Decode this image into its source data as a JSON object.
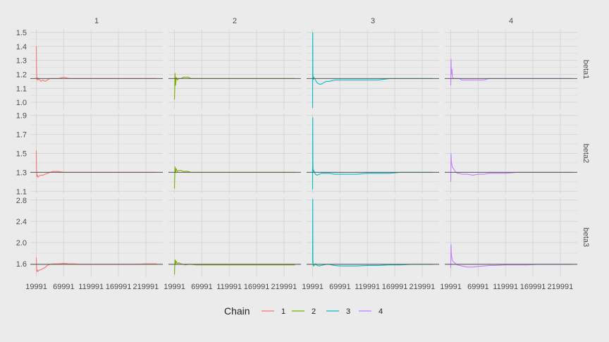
{
  "chart_data": {
    "type": "line",
    "title": "",
    "xlabel": "",
    "ylabel": "",
    "background": "#ebebeb",
    "gridline_color": "#d6d6d6",
    "reference_line_color": "#555555",
    "grid": true,
    "facet_columns": [
      "1",
      "2",
      "3",
      "4"
    ],
    "facet_rows": [
      "beta1",
      "beta2",
      "beta3"
    ],
    "x_ticks": [
      "19991",
      "69991",
      "119991",
      "169991",
      "219991"
    ],
    "xlim": [
      19991,
      239991
    ],
    "rows": [
      {
        "name": "beta1",
        "ylim": [
          0.95,
          1.52
        ],
        "y_ticks": [
          "1.0",
          "1.1",
          "1.2",
          "1.3",
          "1.4",
          "1.5"
        ],
        "reference": 1.17
      },
      {
        "name": "beta2",
        "ylim": [
          1.08,
          1.92
        ],
        "y_ticks": [
          "1.1",
          "1.3",
          "1.5",
          "1.7",
          "1.9"
        ],
        "reference": 1.3
      },
      {
        "name": "beta3",
        "ylim": [
          1.35,
          2.85
        ],
        "y_ticks": [
          "1.6",
          "2.0",
          "2.4",
          "2.8"
        ],
        "reference": 1.59
      }
    ],
    "legend": {
      "title": "Chain",
      "position": "bottom",
      "items": [
        {
          "label": "1",
          "color": "#f8766d"
        },
        {
          "label": "2",
          "color": "#7cae00"
        },
        {
          "label": "3",
          "color": "#00bfc4"
        },
        {
          "label": "4",
          "color": "#c77cff"
        }
      ]
    },
    "series": [
      {
        "row": "beta1",
        "chain": "1",
        "color": "#f8766d",
        "x": [
          19991,
          20500,
          21000,
          21500,
          23000,
          25000,
          28000,
          32000,
          36000,
          40000,
          45000,
          50000,
          60000,
          70000,
          80000,
          90000,
          100000,
          120000,
          140000,
          160000,
          180000,
          200000,
          220000,
          239991
        ],
        "y": [
          1.4,
          1.22,
          1.16,
          1.18,
          1.16,
          1.17,
          1.15,
          1.16,
          1.15,
          1.16,
          1.17,
          1.17,
          1.17,
          1.18,
          1.17,
          1.17,
          1.17,
          1.17,
          1.17,
          1.17,
          1.17,
          1.17,
          1.17,
          1.17
        ]
      },
      {
        "row": "beta1",
        "chain": "2",
        "color": "#7cae00",
        "x": [
          19991,
          20500,
          21000,
          22000,
          23000,
          25000,
          28000,
          32000,
          36000,
          40000,
          45000,
          50000,
          60000,
          70000,
          80000,
          90000,
          100000,
          120000,
          140000,
          160000,
          180000,
          200000,
          220000,
          239991
        ],
        "y": [
          1.02,
          1.1,
          1.21,
          1.12,
          1.18,
          1.16,
          1.17,
          1.17,
          1.18,
          1.18,
          1.18,
          1.17,
          1.17,
          1.17,
          1.17,
          1.17,
          1.17,
          1.17,
          1.17,
          1.17,
          1.17,
          1.17,
          1.17,
          1.17
        ]
      },
      {
        "row": "beta1",
        "chain": "3",
        "color": "#00bfc4",
        "x": [
          19991,
          20200,
          20500,
          21000,
          22000,
          25000,
          28000,
          32000,
          36000,
          40000,
          45000,
          50000,
          60000,
          70000,
          80000,
          90000,
          100000,
          120000,
          140000,
          160000,
          180000,
          200000,
          220000,
          239991
        ],
        "y": [
          0.96,
          1.5,
          1.2,
          1.16,
          1.18,
          1.16,
          1.14,
          1.13,
          1.13,
          1.14,
          1.15,
          1.15,
          1.16,
          1.16,
          1.16,
          1.16,
          1.16,
          1.16,
          1.16,
          1.17,
          1.17,
          1.17,
          1.17,
          1.17
        ]
      },
      {
        "row": "beta1",
        "chain": "4",
        "color": "#c77cff",
        "x": [
          19991,
          20500,
          21000,
          22000,
          23000,
          25000,
          28000,
          32000,
          36000,
          40000,
          45000,
          50000,
          60000,
          70000,
          80000,
          90000,
          100000,
          120000,
          140000,
          160000,
          180000,
          200000,
          220000,
          239991
        ],
        "y": [
          1.12,
          1.31,
          1.2,
          1.24,
          1.18,
          1.17,
          1.17,
          1.17,
          1.17,
          1.16,
          1.16,
          1.16,
          1.16,
          1.16,
          1.16,
          1.17,
          1.17,
          1.17,
          1.17,
          1.17,
          1.17,
          1.17,
          1.17,
          1.17
        ]
      },
      {
        "row": "beta2",
        "chain": "1",
        "color": "#f8766d",
        "x": [
          19991,
          20500,
          21000,
          22000,
          23000,
          25000,
          28000,
          32000,
          36000,
          40000,
          45000,
          50000,
          60000,
          70000,
          80000,
          90000,
          100000,
          120000,
          140000,
          160000,
          180000,
          200000,
          220000,
          239991
        ],
        "y": [
          1.53,
          1.31,
          1.26,
          1.27,
          1.25,
          1.26,
          1.27,
          1.27,
          1.28,
          1.29,
          1.3,
          1.31,
          1.31,
          1.3,
          1.3,
          1.3,
          1.3,
          1.3,
          1.3,
          1.3,
          1.3,
          1.3,
          1.3,
          1.3
        ]
      },
      {
        "row": "beta2",
        "chain": "2",
        "color": "#7cae00",
        "x": [
          19991,
          20500,
          21000,
          22000,
          23000,
          25000,
          28000,
          32000,
          36000,
          40000,
          45000,
          50000,
          60000,
          70000,
          80000,
          90000,
          100000,
          120000,
          140000,
          160000,
          180000,
          200000,
          220000,
          239991
        ],
        "y": [
          1.13,
          1.25,
          1.36,
          1.3,
          1.34,
          1.31,
          1.32,
          1.32,
          1.31,
          1.31,
          1.31,
          1.3,
          1.3,
          1.3,
          1.3,
          1.3,
          1.3,
          1.3,
          1.3,
          1.3,
          1.3,
          1.3,
          1.3,
          1.3
        ]
      },
      {
        "row": "beta2",
        "chain": "3",
        "color": "#00bfc4",
        "x": [
          19991,
          20200,
          20500,
          21000,
          22000,
          25000,
          28000,
          32000,
          36000,
          40000,
          45000,
          50000,
          60000,
          70000,
          80000,
          90000,
          100000,
          120000,
          140000,
          160000,
          180000,
          200000,
          220000,
          239991
        ],
        "y": [
          1.12,
          1.88,
          1.4,
          1.3,
          1.32,
          1.28,
          1.27,
          1.28,
          1.29,
          1.29,
          1.29,
          1.29,
          1.28,
          1.28,
          1.28,
          1.28,
          1.28,
          1.29,
          1.29,
          1.29,
          1.3,
          1.3,
          1.3,
          1.3
        ]
      },
      {
        "row": "beta2",
        "chain": "4",
        "color": "#c77cff",
        "x": [
          19991,
          20500,
          21000,
          22000,
          23000,
          25000,
          28000,
          32000,
          36000,
          40000,
          45000,
          50000,
          60000,
          70000,
          80000,
          90000,
          100000,
          120000,
          140000,
          160000,
          180000,
          200000,
          220000,
          239991
        ],
        "y": [
          1.2,
          1.5,
          1.42,
          1.38,
          1.35,
          1.34,
          1.31,
          1.29,
          1.29,
          1.28,
          1.28,
          1.28,
          1.27,
          1.28,
          1.28,
          1.29,
          1.29,
          1.29,
          1.3,
          1.3,
          1.3,
          1.3,
          1.3,
          1.3
        ]
      },
      {
        "row": "beta3",
        "chain": "1",
        "color": "#f8766d",
        "x": [
          19991,
          20500,
          21000,
          22000,
          23000,
          25000,
          28000,
          32000,
          36000,
          40000,
          45000,
          50000,
          60000,
          70000,
          80000,
          90000,
          100000,
          120000,
          140000,
          160000,
          180000,
          200000,
          220000,
          239991
        ],
        "y": [
          1.72,
          1.52,
          1.45,
          1.48,
          1.46,
          1.48,
          1.49,
          1.51,
          1.53,
          1.57,
          1.59,
          1.6,
          1.6,
          1.61,
          1.6,
          1.6,
          1.59,
          1.59,
          1.59,
          1.59,
          1.59,
          1.59,
          1.6,
          1.6
        ]
      },
      {
        "row": "beta3",
        "chain": "2",
        "color": "#7cae00",
        "x": [
          19991,
          20500,
          21000,
          22000,
          23000,
          25000,
          28000,
          32000,
          36000,
          40000,
          45000,
          50000,
          60000,
          70000,
          80000,
          90000,
          100000,
          120000,
          140000,
          160000,
          180000,
          200000,
          220000,
          239991
        ],
        "y": [
          1.4,
          1.55,
          1.68,
          1.6,
          1.65,
          1.61,
          1.62,
          1.6,
          1.59,
          1.58,
          1.59,
          1.59,
          1.58,
          1.58,
          1.58,
          1.58,
          1.58,
          1.58,
          1.58,
          1.58,
          1.58,
          1.58,
          1.58,
          1.58
        ]
      },
      {
        "row": "beta3",
        "chain": "3",
        "color": "#00bfc4",
        "x": [
          19991,
          20200,
          20500,
          21000,
          22000,
          25000,
          28000,
          32000,
          36000,
          40000,
          45000,
          50000,
          60000,
          70000,
          80000,
          90000,
          100000,
          120000,
          140000,
          160000,
          180000,
          200000,
          220000,
          239991
        ],
        "y": [
          1.62,
          2.82,
          1.7,
          1.58,
          1.56,
          1.6,
          1.57,
          1.56,
          1.57,
          1.58,
          1.59,
          1.59,
          1.57,
          1.56,
          1.56,
          1.56,
          1.56,
          1.57,
          1.57,
          1.58,
          1.58,
          1.59,
          1.59,
          1.59
        ]
      },
      {
        "row": "beta3",
        "chain": "4",
        "color": "#c77cff",
        "x": [
          19991,
          20500,
          21000,
          22000,
          23000,
          25000,
          28000,
          32000,
          36000,
          40000,
          45000,
          50000,
          60000,
          70000,
          80000,
          90000,
          100000,
          120000,
          140000,
          160000,
          180000,
          200000,
          220000,
          239991
        ],
        "y": [
          1.52,
          1.97,
          1.8,
          1.7,
          1.66,
          1.64,
          1.61,
          1.58,
          1.57,
          1.56,
          1.55,
          1.54,
          1.54,
          1.55,
          1.56,
          1.57,
          1.57,
          1.58,
          1.58,
          1.58,
          1.59,
          1.59,
          1.59,
          1.59
        ]
      }
    ]
  }
}
